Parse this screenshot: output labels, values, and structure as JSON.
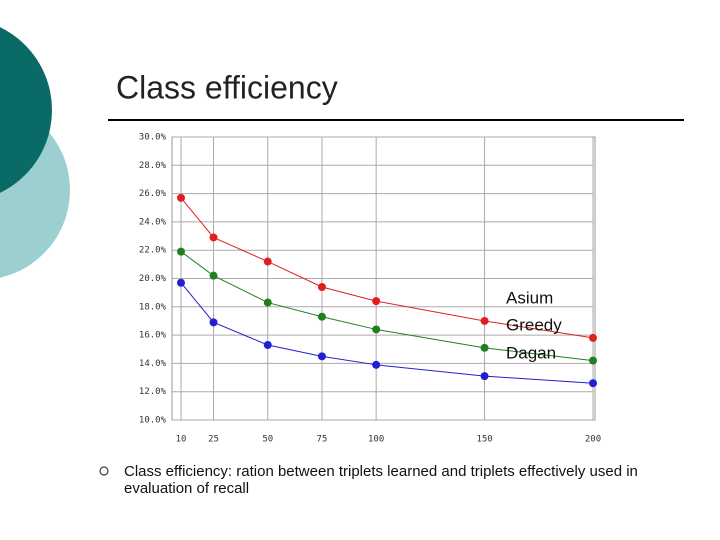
{
  "title": "Class efficiency",
  "bullet": "Class efficiency: ration between triplets learned and triplets effectively used in evaluation of recall",
  "chart_data": {
    "type": "line",
    "x": [
      10,
      25,
      50,
      75,
      100,
      150,
      200
    ],
    "series": [
      {
        "name": "Asium",
        "color": "#e02020",
        "values": [
          25.7,
          22.9,
          21.2,
          19.4,
          18.4,
          17.0,
          15.8
        ]
      },
      {
        "name": "Greedy",
        "color": "#208020",
        "values": [
          21.9,
          20.2,
          18.3,
          17.3,
          16.4,
          15.1,
          14.2
        ]
      },
      {
        "name": "Dagan",
        "color": "#2020d0",
        "values": [
          19.7,
          16.9,
          15.3,
          14.5,
          13.9,
          13.1,
          12.6
        ]
      }
    ],
    "xlim": [
      10,
      200
    ],
    "xticks": [
      10,
      25,
      50,
      75,
      100,
      150,
      200
    ],
    "ylim": [
      10,
      30
    ],
    "yticks": [
      {
        "value": 10,
        "label": "10.0%"
      },
      {
        "value": 12,
        "label": "12.0%"
      },
      {
        "value": 14,
        "label": "14.0%"
      },
      {
        "value": 16,
        "label": "16.0%"
      },
      {
        "value": 18,
        "label": "18.0%"
      },
      {
        "value": 20,
        "label": "20.0%"
      },
      {
        "value": 22,
        "label": "22.0%"
      },
      {
        "value": 24,
        "label": "24.0%"
      },
      {
        "value": 26,
        "label": "26.0%"
      },
      {
        "value": 28,
        "label": "28.0%"
      },
      {
        "value": 30,
        "label": "30.0%"
      }
    ],
    "grid": true
  }
}
